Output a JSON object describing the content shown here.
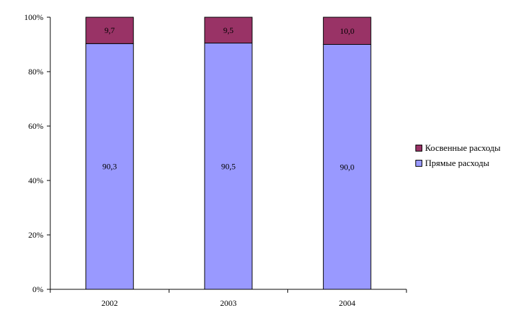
{
  "chart_data": {
    "type": "bar",
    "stacked": true,
    "percent": true,
    "categories": [
      "2002",
      "2003",
      "2004"
    ],
    "series": [
      {
        "name": "Прямые расходы",
        "values": [
          90.3,
          90.5,
          90.0
        ],
        "labels": [
          "90,3",
          "90,5",
          "90,0"
        ],
        "color": "#9999ff"
      },
      {
        "name": "Косвенные расходы",
        "values": [
          9.7,
          9.5,
          10.0
        ],
        "labels": [
          "9,7",
          "9,5",
          "10,0"
        ],
        "color": "#993366"
      }
    ],
    "yticks": [
      "0%",
      "20%",
      "40%",
      "60%",
      "80%",
      "100%"
    ],
    "ylim": [
      0,
      100
    ],
    "grid": false,
    "legend_position": "right"
  },
  "legend": {
    "items": [
      {
        "label": "Косвенные расходы",
        "color": "#993366"
      },
      {
        "label": "Прямые расходы",
        "color": "#9999ff"
      }
    ]
  }
}
